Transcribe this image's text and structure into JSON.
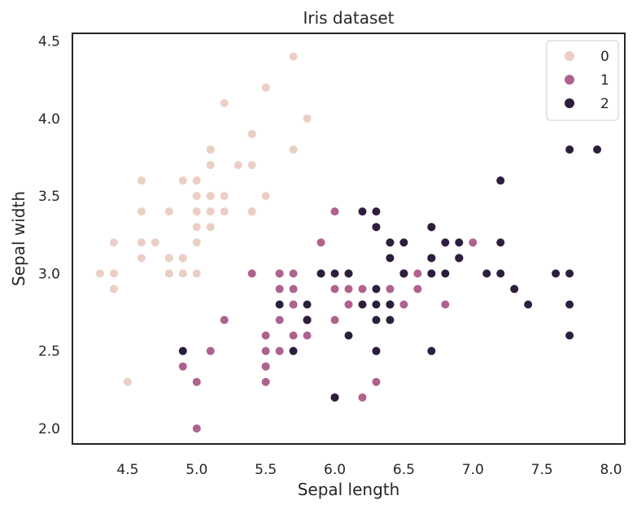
{
  "chart_data": {
    "type": "scatter",
    "title": "Iris dataset",
    "xlabel": "Sepal length",
    "ylabel": "Sepal width",
    "xlim": [
      4.1,
      8.1
    ],
    "ylim": [
      1.9,
      4.55
    ],
    "xticks": [
      "4.5",
      "5.0",
      "5.5",
      "6.0",
      "6.5",
      "7.0",
      "7.5",
      "8.0"
    ],
    "yticks": [
      "2.0",
      "2.5",
      "3.0",
      "3.5",
      "4.0",
      "4.5"
    ],
    "grid": false,
    "legend_position": "top-right",
    "series": [
      {
        "name": "0",
        "color": "#ebcfc4",
        "points": [
          [
            5.1,
            3.5
          ],
          [
            4.9,
            3.0
          ],
          [
            4.7,
            3.2
          ],
          [
            4.6,
            3.1
          ],
          [
            5.0,
            3.6
          ],
          [
            5.4,
            3.9
          ],
          [
            4.6,
            3.4
          ],
          [
            5.0,
            3.4
          ],
          [
            4.4,
            2.9
          ],
          [
            4.9,
            3.1
          ],
          [
            5.4,
            3.7
          ],
          [
            4.8,
            3.4
          ],
          [
            4.8,
            3.0
          ],
          [
            4.3,
            3.0
          ],
          [
            5.8,
            4.0
          ],
          [
            5.7,
            4.4
          ],
          [
            5.4,
            3.9
          ],
          [
            5.1,
            3.5
          ],
          [
            5.7,
            3.8
          ],
          [
            5.1,
            3.8
          ],
          [
            5.4,
            3.4
          ],
          [
            5.1,
            3.7
          ],
          [
            4.6,
            3.6
          ],
          [
            5.1,
            3.3
          ],
          [
            4.8,
            3.4
          ],
          [
            5.0,
            3.0
          ],
          [
            5.0,
            3.4
          ],
          [
            5.2,
            3.5
          ],
          [
            5.2,
            3.4
          ],
          [
            4.7,
            3.2
          ],
          [
            4.8,
            3.1
          ],
          [
            5.4,
            3.4
          ],
          [
            5.2,
            4.1
          ],
          [
            5.5,
            4.2
          ],
          [
            4.9,
            3.1
          ],
          [
            5.0,
            3.2
          ],
          [
            5.5,
            3.5
          ],
          [
            4.9,
            3.6
          ],
          [
            4.4,
            3.0
          ],
          [
            5.1,
            3.4
          ],
          [
            5.0,
            3.5
          ],
          [
            4.5,
            2.3
          ],
          [
            4.4,
            3.2
          ],
          [
            5.0,
            3.5
          ],
          [
            5.1,
            3.8
          ],
          [
            4.8,
            3.0
          ],
          [
            5.1,
            3.8
          ],
          [
            4.6,
            3.2
          ],
          [
            5.3,
            3.7
          ],
          [
            5.0,
            3.3
          ]
        ]
      },
      {
        "name": "1",
        "color": "#b0628e",
        "points": [
          [
            7.0,
            3.2
          ],
          [
            6.4,
            3.2
          ],
          [
            6.9,
            3.1
          ],
          [
            5.5,
            2.3
          ],
          [
            6.5,
            2.8
          ],
          [
            5.7,
            2.8
          ],
          [
            6.3,
            3.3
          ],
          [
            4.9,
            2.4
          ],
          [
            6.6,
            2.9
          ],
          [
            5.2,
            2.7
          ],
          [
            5.0,
            2.0
          ],
          [
            5.9,
            3.0
          ],
          [
            6.0,
            2.2
          ],
          [
            6.1,
            2.9
          ],
          [
            5.6,
            2.9
          ],
          [
            6.7,
            3.1
          ],
          [
            5.6,
            3.0
          ],
          [
            5.8,
            2.7
          ],
          [
            6.2,
            2.2
          ],
          [
            5.6,
            2.5
          ],
          [
            5.9,
            3.2
          ],
          [
            6.1,
            2.8
          ],
          [
            6.3,
            2.5
          ],
          [
            6.1,
            2.8
          ],
          [
            6.4,
            2.9
          ],
          [
            6.6,
            3.0
          ],
          [
            6.8,
            2.8
          ],
          [
            6.7,
            3.0
          ],
          [
            6.0,
            2.9
          ],
          [
            5.7,
            2.6
          ],
          [
            5.5,
            2.4
          ],
          [
            5.5,
            2.4
          ],
          [
            5.8,
            2.7
          ],
          [
            6.0,
            2.7
          ],
          [
            5.4,
            3.0
          ],
          [
            6.0,
            3.4
          ],
          [
            6.7,
            3.1
          ],
          [
            6.3,
            2.3
          ],
          [
            5.6,
            3.0
          ],
          [
            5.5,
            2.5
          ],
          [
            5.5,
            2.6
          ],
          [
            6.1,
            3.0
          ],
          [
            5.8,
            2.6
          ],
          [
            5.0,
            2.3
          ],
          [
            5.6,
            2.7
          ],
          [
            5.7,
            3.0
          ],
          [
            5.7,
            2.9
          ],
          [
            6.2,
            2.9
          ],
          [
            5.1,
            2.5
          ],
          [
            5.7,
            2.8
          ]
        ]
      },
      {
        "name": "2",
        "color": "#2d1e3e",
        "points": [
          [
            6.3,
            3.3
          ],
          [
            5.8,
            2.7
          ],
          [
            7.1,
            3.0
          ],
          [
            6.3,
            2.9
          ],
          [
            6.5,
            3.0
          ],
          [
            7.6,
            3.0
          ],
          [
            4.9,
            2.5
          ],
          [
            7.3,
            2.9
          ],
          [
            6.7,
            2.5
          ],
          [
            7.2,
            3.6
          ],
          [
            6.5,
            3.2
          ],
          [
            6.4,
            2.7
          ],
          [
            6.8,
            3.0
          ],
          [
            5.7,
            2.5
          ],
          [
            5.8,
            2.8
          ],
          [
            6.4,
            3.2
          ],
          [
            6.5,
            3.0
          ],
          [
            7.7,
            3.8
          ],
          [
            7.7,
            2.6
          ],
          [
            6.0,
            2.2
          ],
          [
            6.9,
            3.2
          ],
          [
            5.6,
            2.8
          ],
          [
            7.7,
            2.8
          ],
          [
            6.3,
            2.7
          ],
          [
            6.7,
            3.3
          ],
          [
            7.2,
            3.2
          ],
          [
            6.2,
            2.8
          ],
          [
            6.1,
            3.0
          ],
          [
            6.4,
            2.8
          ],
          [
            7.2,
            3.0
          ],
          [
            7.4,
            2.8
          ],
          [
            7.9,
            3.8
          ],
          [
            6.4,
            2.8
          ],
          [
            6.3,
            2.8
          ],
          [
            6.1,
            2.6
          ],
          [
            7.7,
            3.0
          ],
          [
            6.3,
            3.4
          ],
          [
            6.4,
            3.1
          ],
          [
            6.0,
            3.0
          ],
          [
            6.9,
            3.1
          ],
          [
            6.7,
            3.1
          ],
          [
            6.9,
            3.1
          ],
          [
            5.8,
            2.7
          ],
          [
            6.8,
            3.2
          ],
          [
            6.7,
            3.3
          ],
          [
            6.7,
            3.0
          ],
          [
            6.3,
            2.5
          ],
          [
            6.5,
            3.0
          ],
          [
            6.2,
            3.4
          ],
          [
            5.9,
            3.0
          ]
        ]
      }
    ]
  }
}
